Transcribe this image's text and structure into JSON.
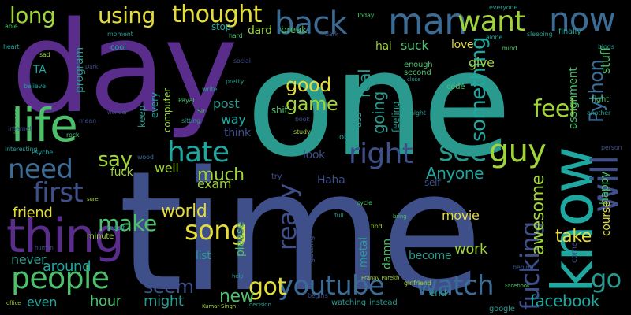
{
  "background": "#000000",
  "palette": {
    "purple": "#5a2d8c",
    "indigo": "#3f4f8a",
    "blue": "#3b6c96",
    "teal": "#2a9a8e",
    "aqua": "#1fa8a0",
    "green": "#4cc06b",
    "lime": "#9fd43a",
    "yellow": "#e4dc3a",
    "dark-purple": "#3d2a60"
  },
  "words": [
    {
      "text": "one",
      "color": "teal"
    },
    {
      "text": "time",
      "color": "indigo"
    },
    {
      "text": "day",
      "color": "purple"
    },
    {
      "text": "life",
      "color": "green"
    },
    {
      "text": "thing",
      "color": "purple"
    },
    {
      "text": "know",
      "color": "aqua"
    },
    {
      "text": "people",
      "color": "green"
    },
    {
      "text": "youtube",
      "color": "blue"
    },
    {
      "text": "watch",
      "color": "blue"
    },
    {
      "text": "man",
      "color": "blue"
    },
    {
      "text": "back",
      "color": "blue"
    },
    {
      "text": "now",
      "color": "blue"
    },
    {
      "text": "want",
      "color": "lime"
    },
    {
      "text": "will",
      "color": "indigo"
    },
    {
      "text": "guy",
      "color": "lime"
    },
    {
      "text": "right",
      "color": "indigo"
    },
    {
      "text": "see",
      "color": "teal"
    },
    {
      "text": "hate",
      "color": "aqua"
    },
    {
      "text": "need",
      "color": "blue"
    },
    {
      "text": "first",
      "color": "indigo"
    },
    {
      "text": "thought",
      "color": "yellow"
    },
    {
      "text": "using",
      "color": "yellow"
    },
    {
      "text": "long",
      "color": "lime"
    },
    {
      "text": "really",
      "color": "indigo"
    },
    {
      "text": "fucking",
      "color": "indigo"
    },
    {
      "text": "song",
      "color": "yellow"
    },
    {
      "text": "world",
      "color": "yellow"
    },
    {
      "text": "make",
      "color": "green"
    },
    {
      "text": "got",
      "color": "yellow"
    },
    {
      "text": "go",
      "color": "teal"
    },
    {
      "text": "facebook",
      "color": "aqua"
    },
    {
      "text": "feel",
      "color": "lime"
    },
    {
      "text": "Python",
      "color": "blue"
    },
    {
      "text": "something",
      "color": "aqua"
    },
    {
      "text": "good",
      "color": "yellow"
    },
    {
      "text": "game",
      "color": "lime"
    },
    {
      "text": "say",
      "color": "lime"
    },
    {
      "text": "much",
      "color": "lime"
    },
    {
      "text": "seem",
      "color": "indigo"
    },
    {
      "text": "new",
      "color": "green"
    },
    {
      "text": "going",
      "color": "teal"
    },
    {
      "text": "awesome",
      "color": "lime"
    },
    {
      "text": "Anyone",
      "color": "aqua"
    },
    {
      "text": "friend",
      "color": "yellow"
    },
    {
      "text": "take",
      "color": "yellow"
    },
    {
      "text": "work",
      "color": "lime"
    },
    {
      "text": "hour",
      "color": "green"
    },
    {
      "text": "even",
      "color": "aqua"
    },
    {
      "text": "never",
      "color": "teal"
    },
    {
      "text": "around",
      "color": "aqua"
    },
    {
      "text": "might",
      "color": "teal"
    },
    {
      "text": "movie",
      "color": "yellow"
    },
    {
      "text": "post",
      "color": "teal"
    },
    {
      "text": "way",
      "color": "aqua"
    },
    {
      "text": "think",
      "color": "indigo"
    },
    {
      "text": "exam",
      "color": "lime"
    },
    {
      "text": "well",
      "color": "lime"
    },
    {
      "text": "please",
      "color": "green"
    },
    {
      "text": "list",
      "color": "teal"
    },
    {
      "text": "metal",
      "color": "teal"
    },
    {
      "text": "damn",
      "color": "green"
    },
    {
      "text": "become",
      "color": "teal"
    },
    {
      "text": "course",
      "color": "yellow"
    },
    {
      "text": "stuff",
      "color": "green"
    },
    {
      "text": "give",
      "color": "lime"
    },
    {
      "text": "love",
      "color": "yellow"
    },
    {
      "text": "suck",
      "color": "green"
    },
    {
      "text": "hai",
      "color": "lime"
    },
    {
      "text": "real",
      "color": "teal"
    },
    {
      "text": "dard",
      "color": "lime"
    },
    {
      "text": "break",
      "color": "green"
    },
    {
      "text": "program",
      "color": "teal"
    },
    {
      "text": "computer",
      "color": "lime"
    },
    {
      "text": "every",
      "color": "aqua"
    },
    {
      "text": "keep",
      "color": "teal"
    },
    {
      "text": "assignment",
      "color": "green"
    },
    {
      "text": "fuck",
      "color": "lime"
    },
    {
      "text": "Haha",
      "color": "indigo"
    },
    {
      "text": "look",
      "color": "indigo"
    },
    {
      "text": "happy",
      "color": "green"
    },
    {
      "text": "shit",
      "color": "green"
    },
    {
      "text": "feeling",
      "color": "teal"
    },
    {
      "text": "enough",
      "color": "green"
    },
    {
      "text": "second",
      "color": "green"
    },
    {
      "text": "code",
      "color": "green"
    },
    {
      "text": "self",
      "color": "indigo"
    },
    {
      "text": "TA",
      "color": "aqua"
    },
    {
      "text": "stop",
      "color": "aqua"
    },
    {
      "text": "fight",
      "color": "green"
    },
    {
      "text": "getting",
      "color": "indigo"
    },
    {
      "text": "end",
      "color": "teal"
    },
    {
      "text": "google",
      "color": "teal"
    },
    {
      "text": "come",
      "color": "indigo"
    },
    {
      "text": "ass",
      "color": "teal"
    },
    {
      "text": "old",
      "color": "teal"
    },
    {
      "text": "try",
      "color": "indigo"
    },
    {
      "text": "finally",
      "color": "aqua"
    },
    {
      "text": "cool",
      "color": "aqua"
    },
    {
      "text": "minute",
      "color": "lime"
    },
    {
      "text": "watching",
      "color": "teal"
    },
    {
      "text": "instead",
      "color": "teal"
    },
    {
      "text": "girlfriend",
      "color": "lime"
    },
    {
      "text": "sleeping",
      "color": "teal"
    },
    {
      "text": "blogs",
      "color": "teal"
    },
    {
      "text": "alone",
      "color": "aqua"
    },
    {
      "text": "mind",
      "color": "green"
    },
    {
      "text": "internet",
      "color": "indigo"
    },
    {
      "text": "interesting",
      "color": "teal"
    },
    {
      "text": "Psyche",
      "color": "aqua"
    },
    {
      "text": "behind",
      "color": "indigo"
    },
    {
      "text": "begins",
      "color": "indigo"
    },
    {
      "text": "another",
      "color": "teal"
    },
    {
      "text": "Pranay Parekh",
      "color": "lime"
    },
    {
      "text": "Kumar Singh",
      "color": "lime"
    },
    {
      "text": "Payal",
      "color": "green"
    },
    {
      "text": "Sir",
      "color": "green"
    },
    {
      "text": "sitting",
      "color": "teal"
    },
    {
      "text": "write",
      "color": "teal"
    },
    {
      "text": "wood",
      "color": "blue"
    },
    {
      "text": "rock",
      "color": "green"
    },
    {
      "text": "hard",
      "color": "green"
    },
    {
      "text": "able",
      "color": "green"
    },
    {
      "text": "sad",
      "color": "lime"
    },
    {
      "text": "believe",
      "color": "aqua"
    },
    {
      "text": "pretty",
      "color": "teal"
    },
    {
      "text": "social",
      "color": "indigo"
    },
    {
      "text": "moment",
      "color": "teal"
    },
    {
      "text": "dark",
      "color": "indigo"
    },
    {
      "text": "cycle",
      "color": "green"
    },
    {
      "text": "book",
      "color": "indigo"
    },
    {
      "text": "reddit",
      "color": "teal"
    },
    {
      "text": "Today",
      "color": "green"
    },
    {
      "text": "everyone",
      "color": "teal"
    },
    {
      "text": "mean",
      "color": "indigo"
    },
    {
      "text": "person",
      "color": "indigo"
    },
    {
      "text": "full",
      "color": "teal"
    },
    {
      "text": "find",
      "color": "lime"
    },
    {
      "text": "study",
      "color": "lime"
    },
    {
      "text": "night",
      "color": "teal"
    },
    {
      "text": "heart",
      "color": "aqua"
    },
    {
      "text": "language",
      "color": "green"
    },
    {
      "text": "decision",
      "color": "teal"
    },
    {
      "text": "wonder",
      "color": "indigo"
    },
    {
      "text": "close",
      "color": "teal"
    },
    {
      "text": "Facebook",
      "color": "green"
    },
    {
      "text": "human",
      "color": "indigo"
    },
    {
      "text": "office",
      "color": "lime"
    },
    {
      "text": "help",
      "color": "teal"
    },
    {
      "text": "Dark",
      "color": "indigo"
    },
    {
      "text": "sure",
      "color": "lime"
    },
    {
      "text": "bring",
      "color": "green"
    }
  ]
}
